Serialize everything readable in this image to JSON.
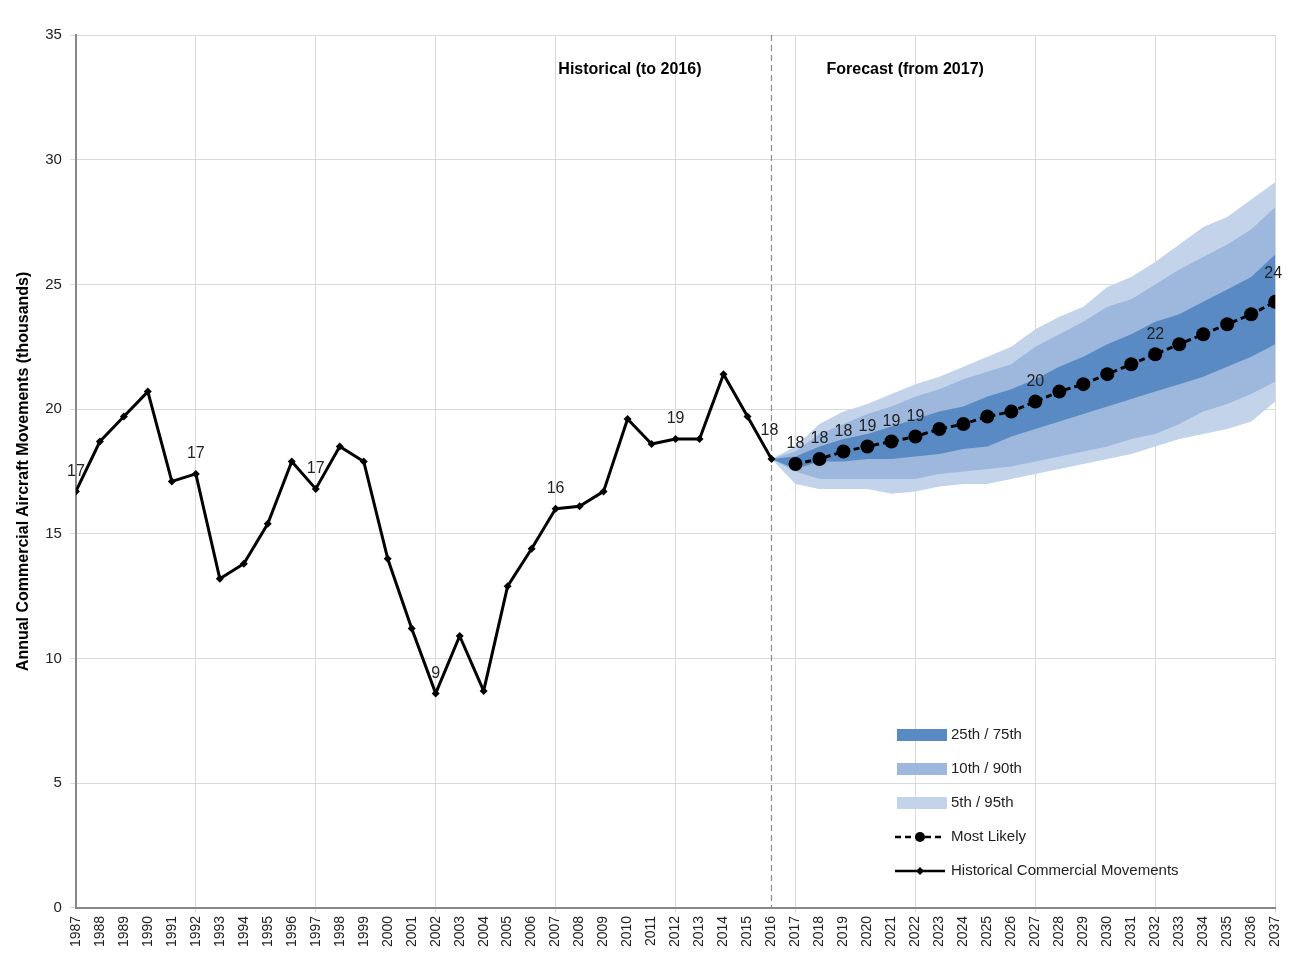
{
  "chart_data": {
    "type": "line",
    "ylabel": "Annual Commercial Aircraft Movements (thousands)",
    "xlim": [
      1987,
      2037
    ],
    "xticks": [
      1987,
      1988,
      1989,
      1990,
      1991,
      1992,
      1993,
      1994,
      1995,
      1996,
      1997,
      1998,
      1999,
      2000,
      2001,
      2002,
      2003,
      2004,
      2005,
      2006,
      2007,
      2008,
      2009,
      2010,
      2011,
      2012,
      2013,
      2014,
      2015,
      2016,
      2017,
      2018,
      2019,
      2020,
      2021,
      2022,
      2023,
      2024,
      2025,
      2026,
      2027,
      2028,
      2029,
      2030,
      2031,
      2032,
      2033,
      2034,
      2035,
      2036,
      2037
    ],
    "ylim": [
      0,
      35
    ],
    "yticks": [
      0,
      5,
      10,
      15,
      20,
      25,
      30,
      35
    ],
    "grid": true,
    "legend": "bottom right",
    "ref_lines": [
      {
        "axis": "x",
        "value": 2016,
        "color": "#8c8c8c",
        "line_style": "dashed"
      }
    ],
    "annotations": [
      "Historical (to 2016)",
      "Forecast (from 2017)"
    ],
    "series": [
      {
        "name": "25th / 75th",
        "type": "area",
        "color": "#5a8ac4",
        "x": [
          2016,
          2017,
          2018,
          2019,
          2020,
          2021,
          2022,
          2023,
          2024,
          2025,
          2026,
          2027,
          2028,
          2029,
          2030,
          2031,
          2032,
          2033,
          2034,
          2035,
          2036,
          2037
        ],
        "values": [
          null,
          null,
          null,
          null,
          null,
          null,
          null,
          null,
          null,
          null,
          null,
          null,
          null,
          null,
          null,
          null,
          null,
          null,
          null,
          null,
          null,
          null
        ],
        "lower": [
          18.0,
          17.6,
          17.9,
          17.9,
          18.0,
          18.0,
          18.1,
          18.2,
          18.4,
          18.5,
          18.9,
          19.2,
          19.5,
          19.8,
          20.1,
          20.4,
          20.7,
          21.0,
          21.3,
          21.7,
          22.1,
          22.6
        ],
        "upper": [
          18.0,
          18.1,
          18.5,
          18.8,
          19.0,
          19.3,
          19.6,
          19.9,
          20.1,
          20.5,
          20.8,
          21.2,
          21.7,
          22.1,
          22.6,
          23.0,
          23.5,
          23.8,
          24.3,
          24.8,
          25.3,
          26.2
        ]
      },
      {
        "name": "10th / 90th",
        "type": "area",
        "color": "#9db8dc",
        "x": [
          2016,
          2017,
          2018,
          2019,
          2020,
          2021,
          2022,
          2023,
          2024,
          2025,
          2026,
          2027,
          2028,
          2029,
          2030,
          2031,
          2032,
          2033,
          2034,
          2035,
          2036,
          2037
        ],
        "values": [
          null,
          null,
          null,
          null,
          null,
          null,
          null,
          null,
          null,
          null,
          null,
          null,
          null,
          null,
          null,
          null,
          null,
          null,
          null,
          null,
          null,
          null
        ],
        "lower": [
          18.0,
          17.5,
          17.2,
          17.2,
          17.2,
          17.2,
          17.2,
          17.4,
          17.5,
          17.6,
          17.7,
          17.9,
          18.1,
          18.3,
          18.5,
          18.8,
          19.0,
          19.4,
          19.9,
          20.2,
          20.6,
          21.1
        ],
        "upper": [
          18.0,
          18.3,
          19.0,
          19.4,
          19.8,
          20.1,
          20.5,
          20.8,
          21.2,
          21.5,
          21.8,
          22.5,
          23.0,
          23.5,
          24.1,
          24.4,
          25.0,
          25.6,
          26.1,
          26.6,
          27.2,
          28.1
        ]
      },
      {
        "name": "5th / 95th",
        "type": "area",
        "color": "#c3d3ea",
        "x": [
          2016,
          2017,
          2018,
          2019,
          2020,
          2021,
          2022,
          2023,
          2024,
          2025,
          2026,
          2027,
          2028,
          2029,
          2030,
          2031,
          2032,
          2033,
          2034,
          2035,
          2036,
          2037
        ],
        "values": [
          null,
          null,
          null,
          null,
          null,
          null,
          null,
          null,
          null,
          null,
          null,
          null,
          null,
          null,
          null,
          null,
          null,
          null,
          null,
          null,
          null,
          null
        ],
        "lower": [
          18.0,
          17.0,
          16.8,
          16.8,
          16.8,
          16.6,
          16.7,
          16.9,
          17.0,
          17.0,
          17.2,
          17.4,
          17.6,
          17.8,
          18.0,
          18.2,
          18.5,
          18.8,
          19.0,
          19.2,
          19.5,
          20.3
        ],
        "upper": [
          18.0,
          18.5,
          19.4,
          19.9,
          20.2,
          20.6,
          21.0,
          21.3,
          21.7,
          22.1,
          22.5,
          23.2,
          23.7,
          24.1,
          24.9,
          25.3,
          25.9,
          26.6,
          27.3,
          27.7,
          28.4,
          29.1
        ]
      },
      {
        "name": "Most Likely",
        "type": "line",
        "color": "#000000",
        "marker": "circle",
        "line_style": "dashed",
        "x": [
          2017,
          2018,
          2019,
          2020,
          2021,
          2022,
          2023,
          2024,
          2025,
          2026,
          2027,
          2028,
          2029,
          2030,
          2031,
          2032,
          2033,
          2034,
          2035,
          2036,
          2037
        ],
        "values": [
          17.8,
          18.0,
          18.3,
          18.5,
          18.7,
          18.9,
          19.2,
          19.4,
          19.7,
          19.9,
          20.3,
          20.7,
          21.0,
          21.4,
          21.8,
          22.2,
          22.6,
          23.0,
          23.4,
          23.8,
          24.3
        ],
        "value_labels": [
          "18",
          "18",
          "18",
          "19",
          "19",
          "19",
          null,
          null,
          null,
          null,
          "20",
          null,
          null,
          null,
          null,
          "22",
          null,
          null,
          null,
          null,
          "24"
        ]
      },
      {
        "name": "Historical Commercial Movements",
        "type": "line",
        "color": "#000000",
        "marker": "diamond",
        "line_style": "solid",
        "x": [
          1987,
          1988,
          1989,
          1990,
          1991,
          1992,
          1993,
          1994,
          1995,
          1996,
          1997,
          1998,
          1999,
          2000,
          2001,
          2002,
          2003,
          2004,
          2005,
          2006,
          2007,
          2008,
          2009,
          2010,
          2011,
          2012,
          2013,
          2014,
          2015,
          2016
        ],
        "values": [
          16.7,
          18.7,
          19.7,
          20.7,
          17.1,
          17.4,
          13.2,
          13.8,
          15.4,
          17.9,
          16.8,
          18.5,
          17.9,
          14.0,
          11.2,
          8.6,
          10.9,
          8.7,
          12.9,
          14.4,
          16.0,
          16.1,
          16.7,
          19.6,
          18.6,
          18.8,
          18.8,
          21.4,
          19.7,
          18.0
        ],
        "value_labels": [
          "17",
          null,
          null,
          null,
          null,
          "17",
          null,
          null,
          null,
          null,
          "17",
          null,
          null,
          null,
          null,
          "9",
          null,
          null,
          null,
          null,
          "16",
          null,
          null,
          null,
          null,
          "19",
          null,
          null,
          null,
          "18"
        ]
      }
    ]
  }
}
